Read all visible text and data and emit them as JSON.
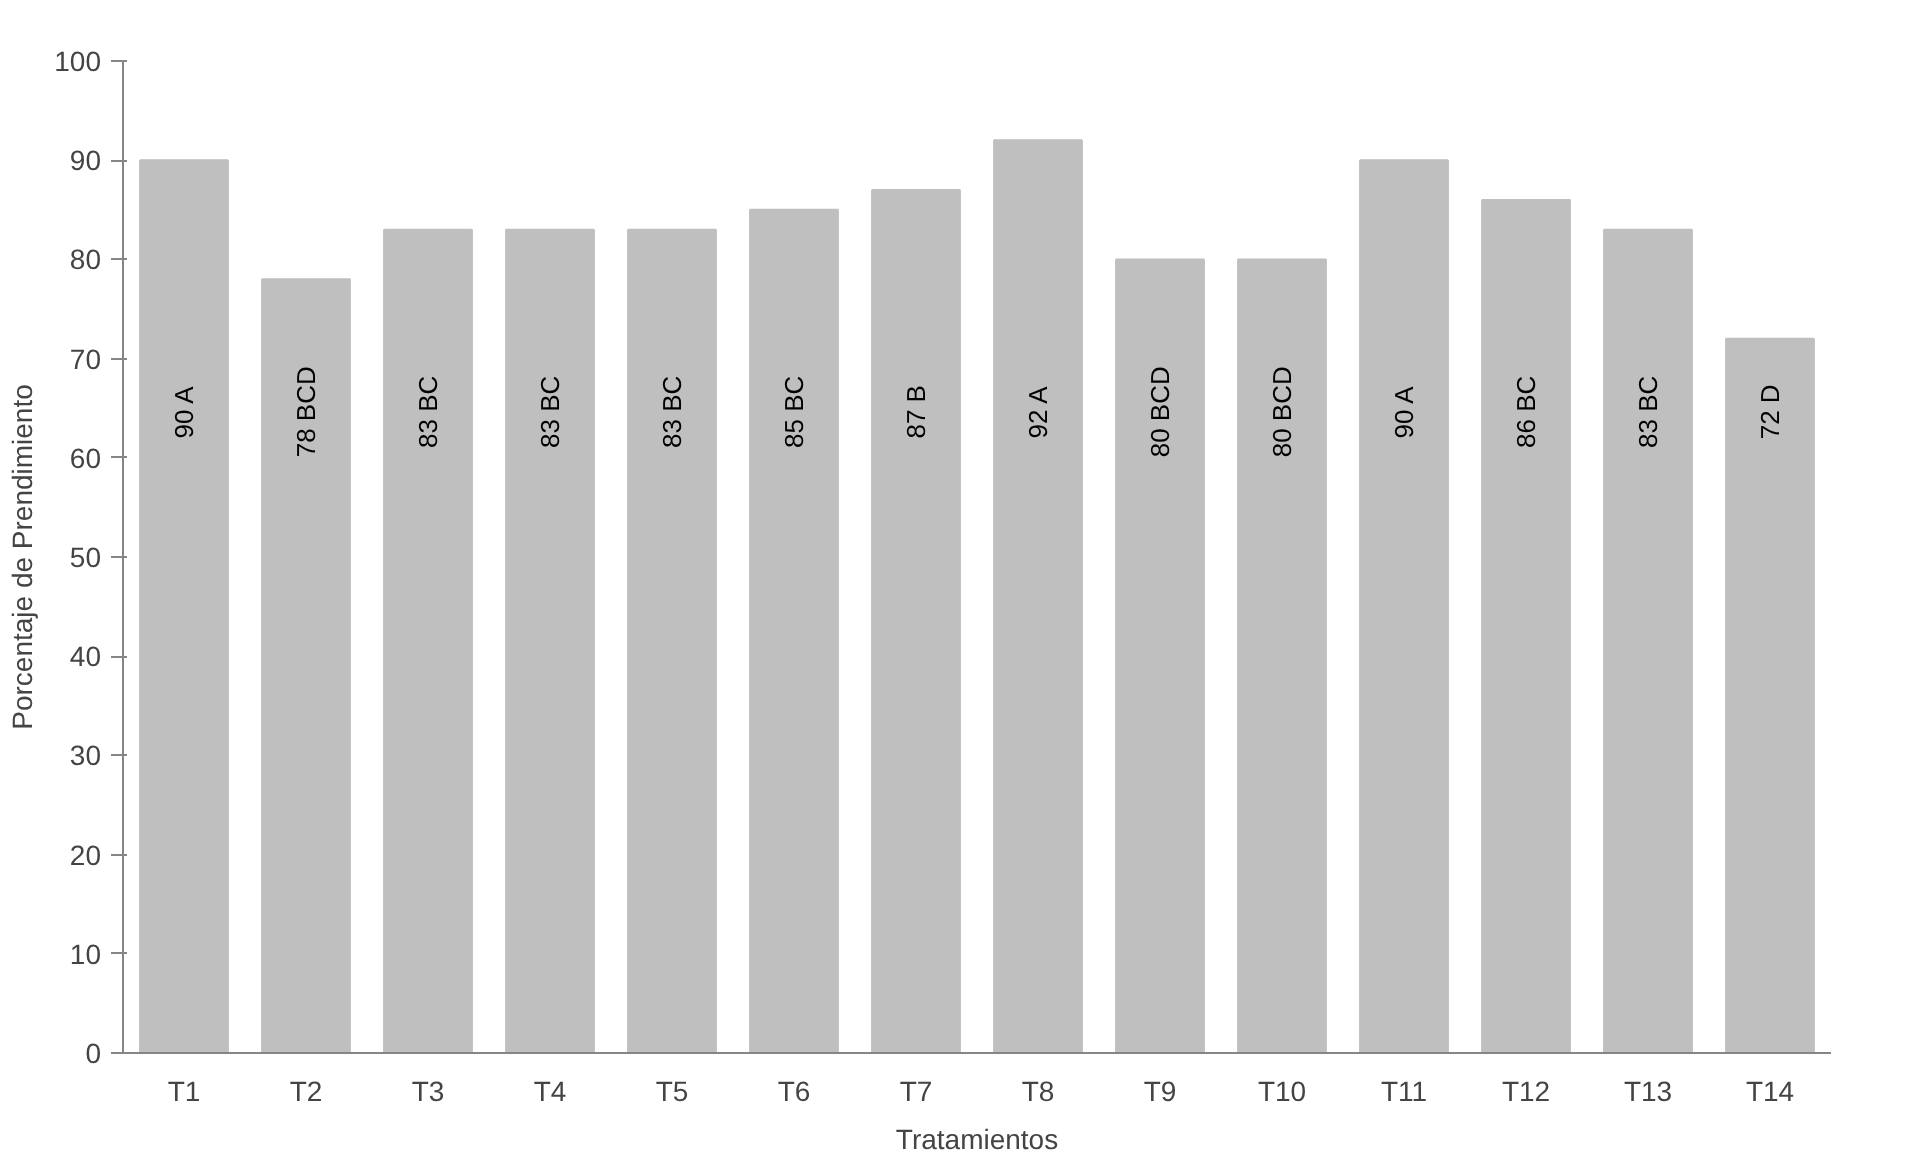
{
  "chart_data": {
    "type": "bar",
    "xlabel": "Tratamientos",
    "ylabel": "Porcentaje de Prendimiento",
    "categories": [
      "T1",
      "T2",
      "T3",
      "T4",
      "T5",
      "T6",
      "T7",
      "T8",
      "T9",
      "T10",
      "T11",
      "T12",
      "T13",
      "T14"
    ],
    "values": [
      90,
      78,
      83,
      83,
      83,
      85,
      87,
      92,
      80,
      80,
      90,
      86,
      83,
      72
    ],
    "value_labels": [
      "90  A",
      "78  BCD",
      "83  BC",
      "83  BC",
      "83  BC",
      "85  BC",
      "87  B",
      "92  A",
      "80  BCD",
      "80  BCD",
      "90  A",
      "86  BC",
      "83  BC",
      "72  D"
    ],
    "color": "#bfbfbf",
    "ylim": [
      0,
      100
    ],
    "yticks": [
      0,
      10,
      20,
      30,
      40,
      50,
      60,
      70,
      80,
      90,
      100
    ],
    "grid": false
  }
}
